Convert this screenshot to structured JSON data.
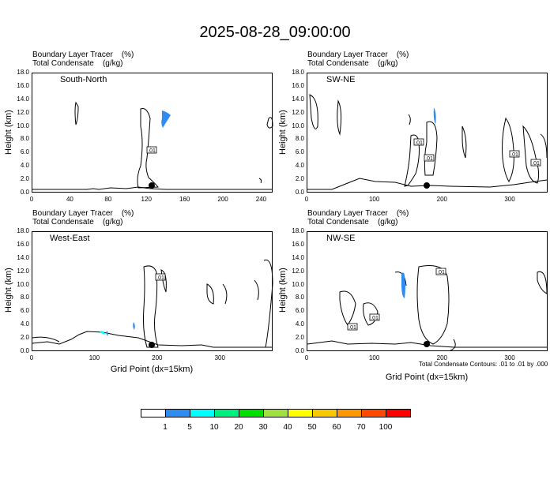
{
  "title": "2025-08-28_09:00:00",
  "field_labels": {
    "line1": "Boundary Layer Tracer    (%)",
    "line2": "Total Condensate    (g/kg)"
  },
  "ylabel": "Height (km)",
  "xlabel": "Grid Point (dx=15km)",
  "contour_note": "Total Condensate Contours: .01 to .01 by .000",
  "contour_label": ".01",
  "colorbar": {
    "colors": [
      "#ffffff",
      "#2f8cf0",
      "#00ffff",
      "#00f080",
      "#00e000",
      "#a0e040",
      "#ffff00",
      "#f8c800",
      "#ff9800",
      "#ff4800",
      "#ff0000"
    ],
    "labels": [
      "1",
      "5",
      "10",
      "20",
      "30",
      "40",
      "50",
      "60",
      "70",
      "100"
    ]
  },
  "chart_data": [
    {
      "type": "contour",
      "name": "South-North",
      "ylim": [
        0,
        18
      ],
      "yticks": [
        "0.0",
        "2.0",
        "4.0",
        "6.0",
        "8.0",
        "10.0",
        "12.0",
        "14.0",
        "16.0",
        "18.0"
      ],
      "xlim": [
        0,
        252
      ],
      "xticks": [
        "0",
        "40",
        "80",
        "120",
        "160",
        "200",
        "240"
      ],
      "xtick_vals": [
        0,
        40,
        80,
        120,
        160,
        200,
        240
      ]
    },
    {
      "type": "contour",
      "name": "SW-NE",
      "ylim": [
        0,
        18
      ],
      "yticks": [
        "0.0",
        "2.0",
        "4.0",
        "6.0",
        "8.0",
        "10.0",
        "12.0",
        "14.0",
        "16.0",
        "18.0"
      ],
      "xlim": [
        0,
        356
      ],
      "xticks": [
        "0",
        "100",
        "200",
        "300"
      ],
      "xtick_vals": [
        0,
        100,
        200,
        300
      ]
    },
    {
      "type": "contour",
      "name": "West-East",
      "ylim": [
        0,
        18
      ],
      "yticks": [
        "0.0",
        "2.0",
        "4.0",
        "6.0",
        "8.0",
        "10.0",
        "12.0",
        "14.0",
        "16.0",
        "18.0"
      ],
      "xlim": [
        0,
        384
      ],
      "xticks": [
        "0",
        "100",
        "200",
        "300"
      ],
      "xtick_vals": [
        0,
        100,
        200,
        300
      ]
    },
    {
      "type": "contour",
      "name": "NW-SE",
      "ylim": [
        0,
        18
      ],
      "yticks": [
        "0.0",
        "2.0",
        "4.0",
        "6.0",
        "8.0",
        "10.0",
        "12.0",
        "14.0",
        "16.0",
        "18.0"
      ],
      "xlim": [
        0,
        356
      ],
      "xticks": [
        "0",
        "100",
        "200",
        "300"
      ],
      "xtick_vals": [
        0,
        100,
        200,
        300
      ]
    }
  ]
}
